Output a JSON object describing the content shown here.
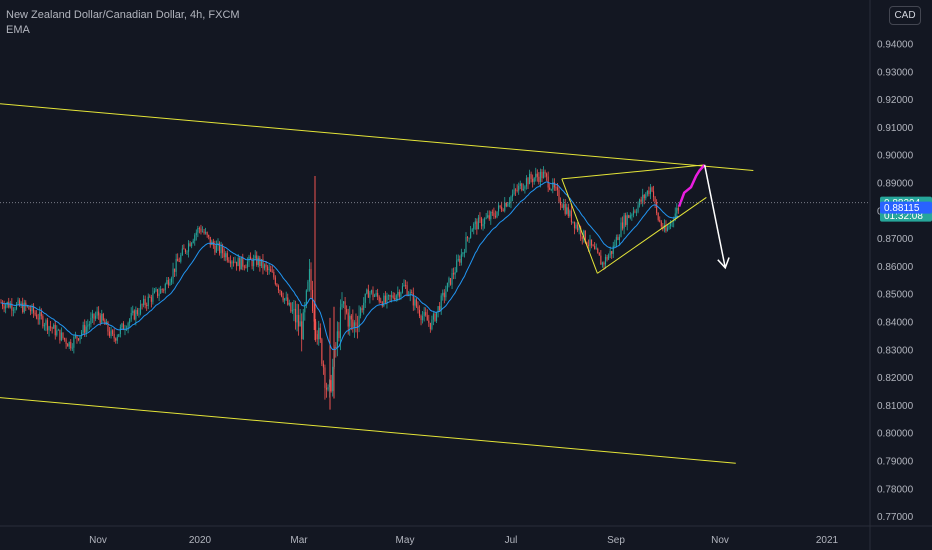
{
  "header": {
    "title": "New Zealand Dollar/Canadian Dollar, 4h, FXCM",
    "indicator": "EMA",
    "currency_button": "CAD"
  },
  "colors": {
    "background": "#131722",
    "up_candle": "#26a69a",
    "down_candle": "#ef5350",
    "ema": "#2196f3",
    "trendline": "#e5e538",
    "projection": "#e91ee0",
    "arrow": "#ffffff",
    "price_badge": "#26a69a",
    "blue_badge": "#2962ff",
    "axis_text": "#b2b5be"
  },
  "chart_data": {
    "type": "candlestick",
    "symbol": "NZDCAD",
    "timeframe": "4h",
    "x_tick_labels": [
      "Nov",
      "2020",
      "Mar",
      "May",
      "Jul",
      "Sep",
      "Nov",
      "2021"
    ],
    "x_tick_dates": [
      "2019-11-01",
      "2020-01-01",
      "2020-03-01",
      "2020-05-01",
      "2020-07-01",
      "2020-09-01",
      "2020-11-01",
      "2021-01-01"
    ],
    "y_tick_labels": [
      "0.94000",
      "0.93000",
      "0.92000",
      "0.91000",
      "0.90000",
      "0.89000",
      "0.88000",
      "0.87000",
      "0.86000",
      "0.85000",
      "0.84000",
      "0.83000",
      "0.82000",
      "0.81000",
      "0.80000",
      "0.79000",
      "0.78000",
      "0.77000"
    ],
    "ylim": [
      0.765,
      0.9485
    ],
    "current_price": "0.88294",
    "countdown": "01:32:08",
    "blue_level": "0.88115",
    "price_path": [
      [
        "2019-09-20",
        0.847
      ],
      [
        "2019-10-02",
        0.845
      ],
      [
        "2019-10-12",
        0.838
      ],
      [
        "2019-10-20",
        0.832
      ],
      [
        "2019-11-01",
        0.843
      ],
      [
        "2019-11-10",
        0.834
      ],
      [
        "2019-11-20",
        0.841
      ],
      [
        "2019-12-01",
        0.848
      ],
      [
        "2019-12-10",
        0.852
      ],
      [
        "2019-12-20",
        0.863
      ],
      [
        "2019-12-28",
        0.871
      ],
      [
        "2020-01-01",
        0.874
      ],
      [
        "2020-01-08",
        0.868
      ],
      [
        "2020-01-15",
        0.865
      ],
      [
        "2020-01-25",
        0.861
      ],
      [
        "2020-02-05",
        0.862
      ],
      [
        "2020-02-15",
        0.856
      ],
      [
        "2020-02-25",
        0.844
      ],
      [
        "2020-03-03",
        0.837
      ],
      [
        "2020-03-07",
        0.856
      ],
      [
        "2020-03-10",
        0.842
      ],
      [
        "2020-03-14",
        0.829
      ],
      [
        "2020-03-18",
        0.812
      ],
      [
        "2020-03-21",
        0.826
      ],
      [
        "2020-03-26",
        0.846
      ],
      [
        "2020-04-01",
        0.838
      ],
      [
        "2020-04-10",
        0.851
      ],
      [
        "2020-04-20",
        0.847
      ],
      [
        "2020-05-01",
        0.853
      ],
      [
        "2020-05-10",
        0.843
      ],
      [
        "2020-05-16",
        0.839
      ],
      [
        "2020-05-25",
        0.852
      ],
      [
        "2020-06-03",
        0.865
      ],
      [
        "2020-06-08",
        0.874
      ],
      [
        "2020-06-20",
        0.878
      ],
      [
        "2020-07-01",
        0.885
      ],
      [
        "2020-07-10",
        0.891
      ],
      [
        "2020-07-20",
        0.893
      ],
      [
        "2020-07-27",
        0.887
      ],
      [
        "2020-08-05",
        0.878
      ],
      [
        "2020-08-15",
        0.869
      ],
      [
        "2020-08-24",
        0.861
      ],
      [
        "2020-08-30",
        0.866
      ],
      [
        "2020-09-05",
        0.876
      ],
      [
        "2020-09-14",
        0.882
      ],
      [
        "2020-09-22",
        0.889
      ],
      [
        "2020-09-25",
        0.878
      ],
      [
        "2020-09-30",
        0.872
      ],
      [
        "2020-10-05",
        0.8785
      ],
      [
        "2020-10-08",
        0.8815
      ]
    ],
    "projection_path": [
      [
        "2020-10-08",
        0.8815
      ],
      [
        "2020-10-11",
        0.8865
      ],
      [
        "2020-10-15",
        0.8885
      ],
      [
        "2020-10-18",
        0.8925
      ],
      [
        "2020-10-20",
        0.8945
      ],
      [
        "2020-10-23",
        0.8965
      ]
    ],
    "trendlines": [
      {
        "name": "channel-top",
        "points": [
          [
            "2019-09-20",
            0.9185
          ],
          [
            "2020-11-20",
            0.8945
          ]
        ]
      },
      {
        "name": "channel-bottom",
        "points": [
          [
            "2019-09-20",
            0.8128
          ],
          [
            "2020-11-10",
            0.7892
          ]
        ]
      },
      {
        "name": "wedge-upper",
        "points": [
          [
            "2020-07-31",
            0.8915
          ],
          [
            "2020-10-23",
            0.8965
          ]
        ]
      },
      {
        "name": "wedge-lower",
        "points": [
          [
            "2020-08-21",
            0.8575
          ],
          [
            "2020-10-24",
            0.8848
          ]
        ]
      },
      {
        "name": "wedge-left-edge",
        "points": [
          [
            "2020-08-21",
            0.8575
          ],
          [
            "2020-07-31",
            0.8915
          ]
        ]
      }
    ],
    "arrow": {
      "from": [
        "2020-10-23",
        0.8965
      ],
      "to": [
        "2020-11-04",
        0.8595
      ]
    }
  }
}
